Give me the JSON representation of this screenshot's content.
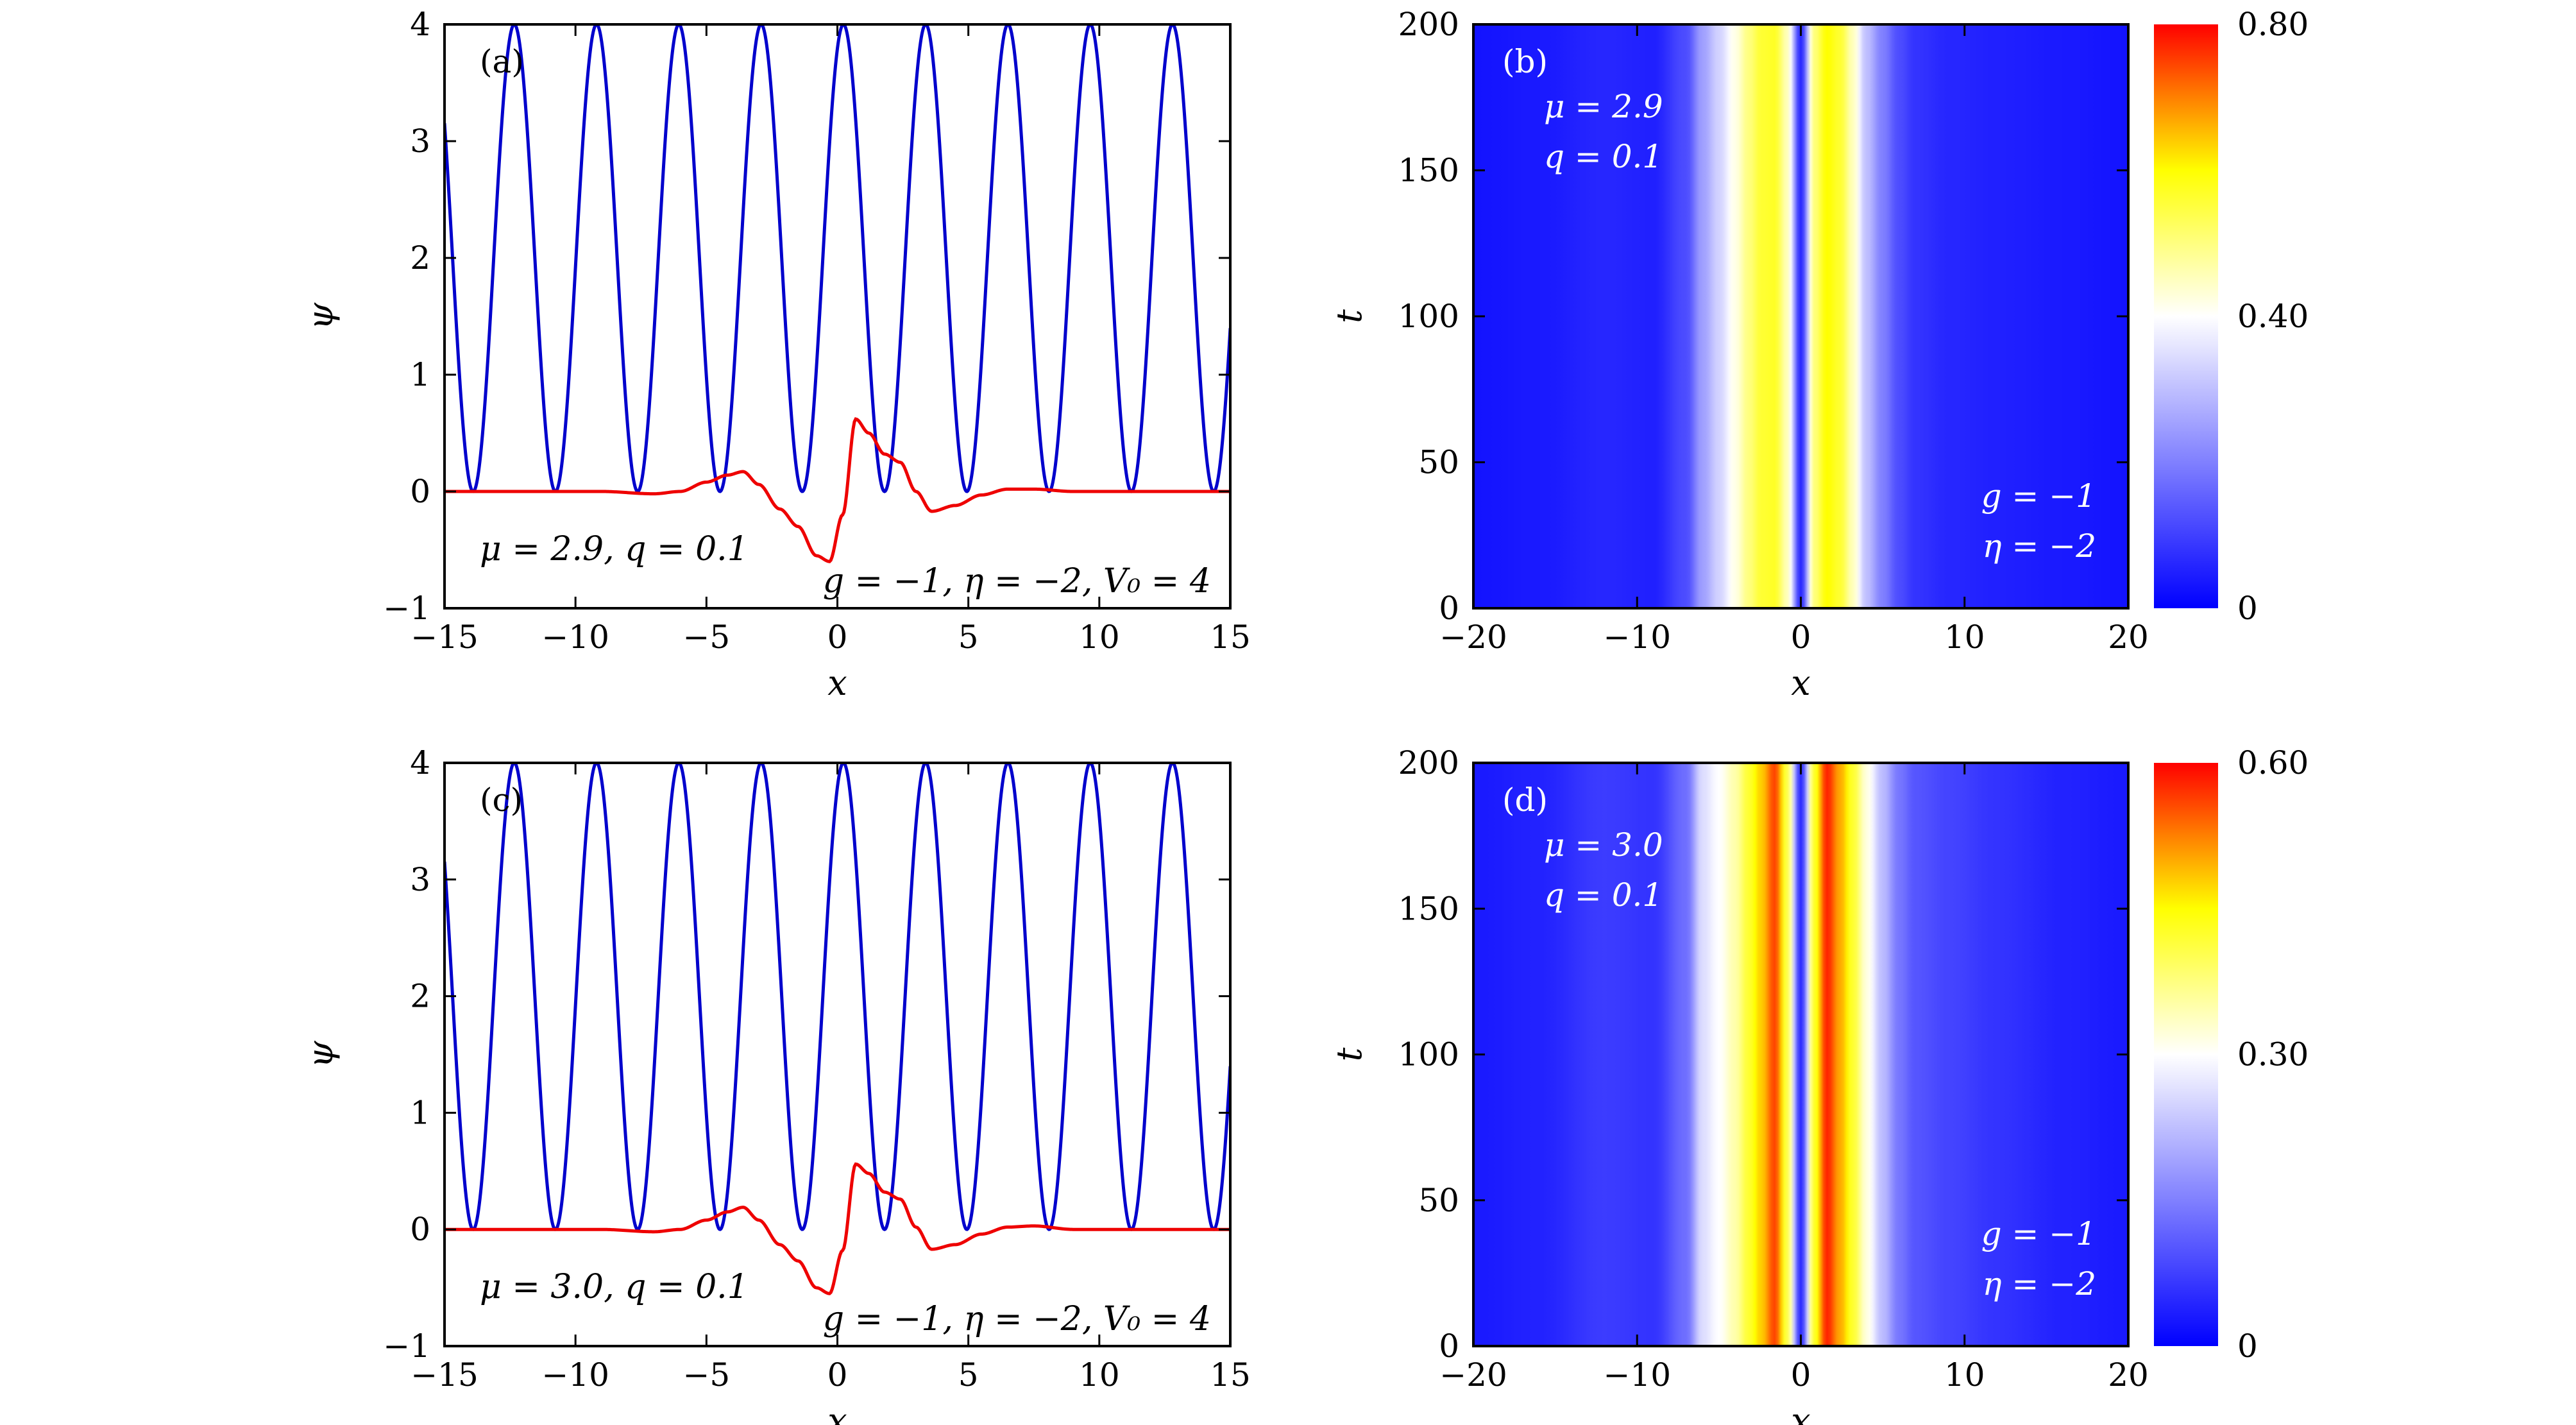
{
  "chart_data": [
    {
      "panel": "(a)",
      "type": "line",
      "xlabel": "x",
      "ylabel": "ψ",
      "xlim": [
        -15,
        15
      ],
      "ylim": [
        -1,
        4
      ],
      "xticks": [
        "−15",
        "−10",
        "−5",
        "0",
        "5",
        "10",
        "15"
      ],
      "yticks": [
        "−1",
        "0",
        "1",
        "2",
        "3",
        "4"
      ],
      "annotation_params": "μ = 2.9,  q = 0.1",
      "annotation_model": "g = −1,  η = −2,  V₀ = 4",
      "series": [
        {
          "role": "potential",
          "color": "#0000cc",
          "amplitude": 4,
          "period": 3.1416,
          "description_values": {
            "max": 4,
            "min": 0
          }
        },
        {
          "role": "wavefunction",
          "color": "#ee0000",
          "x": [
            -15,
            -9,
            -7,
            -6,
            -5,
            -4.2,
            -3.6,
            -3,
            -2.2,
            -1.5,
            -0.8,
            -0.3,
            0.2,
            0.7,
            1.2,
            1.8,
            2.4,
            3.0,
            3.6,
            4.5,
            5.5,
            6.5,
            7.5,
            9,
            15
          ],
          "y": [
            0,
            0,
            -0.02,
            0.0,
            0.08,
            0.14,
            0.17,
            0.06,
            -0.15,
            -0.3,
            -0.55,
            -0.6,
            -0.2,
            0.62,
            0.5,
            0.32,
            0.25,
            0.0,
            -0.17,
            -0.12,
            -0.03,
            0.02,
            0.02,
            0.0,
            0
          ]
        }
      ]
    },
    {
      "panel": "(b)",
      "type": "heatmap",
      "xlabel": "x",
      "ylabel": "t",
      "xlim": [
        -20,
        20
      ],
      "ylim": [
        0,
        200
      ],
      "xticks": [
        "−20",
        "−10",
        "0",
        "10",
        "20"
      ],
      "yticks": [
        "0",
        "50",
        "100",
        "150",
        "200"
      ],
      "colorbar_ticks": [
        "0",
        "0.40",
        "0.80"
      ],
      "colorbar_range": [
        0,
        0.8
      ],
      "annotation_top": [
        "μ = 2.9",
        "q = 0.1"
      ],
      "annotation_bottom": [
        "g = −1",
        "η = −2"
      ],
      "profile_x": [
        -20,
        -16,
        -12,
        -9,
        -7,
        -6,
        -5,
        -4,
        -3.2,
        -2.4,
        -1.6,
        -0.8,
        0,
        0.8,
        1.6,
        2.4,
        3.2,
        4,
        5,
        6,
        7,
        9,
        12,
        16,
        20
      ],
      "profile_value": [
        0.03,
        0.04,
        0.06,
        0.05,
        0.12,
        0.25,
        0.33,
        0.42,
        0.5,
        0.56,
        0.57,
        0.45,
        0.06,
        0.5,
        0.6,
        0.56,
        0.45,
        0.3,
        0.2,
        0.12,
        0.08,
        0.06,
        0.05,
        0.04,
        0.03
      ]
    },
    {
      "panel": "(c)",
      "type": "line",
      "xlabel": "x",
      "ylabel": "ψ",
      "xlim": [
        -15,
        15
      ],
      "ylim": [
        -1,
        4
      ],
      "xticks": [
        "−15",
        "−10",
        "−5",
        "0",
        "5",
        "10",
        "15"
      ],
      "yticks": [
        "−1",
        "0",
        "1",
        "2",
        "3",
        "4"
      ],
      "annotation_params": "μ = 3.0,  q = 0.1",
      "annotation_model": "g = −1,  η = −2,  V₀ = 4",
      "series": [
        {
          "role": "potential",
          "color": "#0000cc",
          "amplitude": 4,
          "period": 3.1416,
          "description_values": {
            "max": 4,
            "min": 0
          }
        },
        {
          "role": "wavefunction",
          "color": "#ee0000",
          "x": [
            -15,
            -9,
            -7,
            -6,
            -5,
            -4.2,
            -3.6,
            -3,
            -2.2,
            -1.5,
            -0.8,
            -0.3,
            0.2,
            0.7,
            1.2,
            1.8,
            2.4,
            3.0,
            3.6,
            4.5,
            5.5,
            6.5,
            7.5,
            9,
            15
          ],
          "y": [
            0,
            0,
            -0.02,
            0.0,
            0.08,
            0.15,
            0.19,
            0.08,
            -0.13,
            -0.27,
            -0.5,
            -0.55,
            -0.18,
            0.56,
            0.48,
            0.32,
            0.26,
            0.02,
            -0.17,
            -0.13,
            -0.04,
            0.02,
            0.03,
            0.0,
            0
          ]
        }
      ]
    },
    {
      "panel": "(d)",
      "type": "heatmap",
      "xlabel": "x",
      "ylabel": "t",
      "xlim": [
        -20,
        20
      ],
      "ylim": [
        0,
        200
      ],
      "xticks": [
        "−20",
        "−10",
        "0",
        "10",
        "20"
      ],
      "yticks": [
        "0",
        "50",
        "100",
        "150",
        "200"
      ],
      "colorbar_ticks": [
        "0",
        "0.30",
        "0.60"
      ],
      "colorbar_range": [
        0,
        0.6
      ],
      "annotation_top": [
        "μ = 3.0",
        "q = 0.1"
      ],
      "annotation_bottom": [
        "g = −1",
        "η = −2"
      ],
      "profile_x": [
        -20,
        -16,
        -12,
        -9,
        -7,
        -6,
        -5,
        -4,
        -3.2,
        -2.4,
        -1.6,
        -0.8,
        0,
        0.8,
        1.6,
        2.4,
        3.2,
        4,
        5,
        6,
        7,
        9,
        12,
        16,
        20
      ],
      "profile_value": [
        0.03,
        0.04,
        0.07,
        0.06,
        0.13,
        0.26,
        0.3,
        0.35,
        0.42,
        0.48,
        0.56,
        0.4,
        0.05,
        0.42,
        0.58,
        0.5,
        0.42,
        0.32,
        0.22,
        0.14,
        0.1,
        0.08,
        0.06,
        0.04,
        0.03
      ]
    }
  ]
}
